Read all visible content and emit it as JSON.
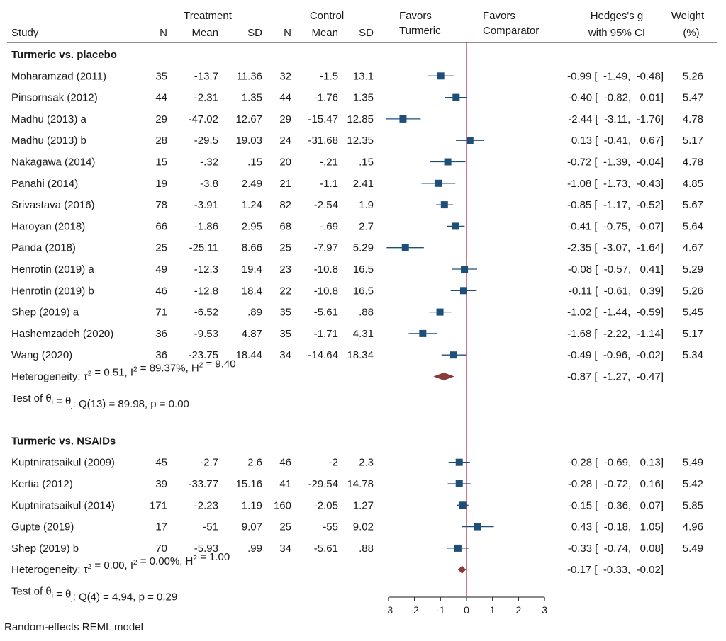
{
  "chart_data": {
    "type": "forest",
    "model_note": "Random-effects REML model",
    "headers": {
      "treatment_group": "Treatment",
      "control_group": "Control",
      "study": "Study",
      "n": "N",
      "mean": "Mean",
      "sd": "SD",
      "favors_left_1": "Favors",
      "favors_left_2": "Turmeric",
      "favors_right_1": "Favors",
      "favors_right_2": "Comparator",
      "effect_1": "Hedges's g",
      "effect_2": "with 95% CI",
      "weight_1": "Weight",
      "weight_2": "(%)"
    },
    "x_axis": {
      "range": [
        -3,
        3
      ],
      "ticks": [
        "-3",
        "-2",
        "-1",
        "0",
        "1",
        "2",
        "3"
      ],
      "null_line": 0,
      "null_line_color": "#c0506a"
    },
    "colors": {
      "marker": "#1f4e79",
      "ci": "#1f4e79",
      "diamond": "#8b3a3a"
    },
    "groups": [
      {
        "title": "Turmeric vs. placebo",
        "studies": [
          {
            "name": "Moharamzad (2011)",
            "tn": "35",
            "tmean": "-13.7",
            "tsd": "11.36",
            "cn": "32",
            "cmean": "-1.5",
            "csd": "13.1",
            "g": -0.99,
            "lo": -1.49,
            "hi": -0.48,
            "ci_text": "-0.99 [  -1.49,  -0.48]",
            "weight": "5.26"
          },
          {
            "name": "Pinsornsak (2012)",
            "tn": "44",
            "tmean": "-2.31",
            "tsd": "1.35",
            "cn": "44",
            "cmean": "-1.76",
            "csd": "1.35",
            "g": -0.4,
            "lo": -0.82,
            "hi": 0.01,
            "ci_text": "-0.40 [  -0.82,   0.01]",
            "weight": "5.47"
          },
          {
            "name": "Madhu (2013) a",
            "tn": "29",
            "tmean": "-47.02",
            "tsd": "12.67",
            "cn": "29",
            "cmean": "-15.47",
            "csd": "12.85",
            "g": -2.44,
            "lo": -3.11,
            "hi": -1.76,
            "ci_text": "-2.44 [  -3.11,  -1.76]",
            "weight": "4.78"
          },
          {
            "name": "Madhu (2013) b",
            "tn": "28",
            "tmean": "-29.5",
            "tsd": "19.03",
            "cn": "24",
            "cmean": "-31.68",
            "csd": "12.35",
            "g": 0.13,
            "lo": -0.41,
            "hi": 0.67,
            "ci_text": "0.13 [  -0.41,   0.67]",
            "weight": "5.17"
          },
          {
            "name": "Nakagawa (2014)",
            "tn": "15",
            "tmean": "-.32",
            "tsd": ".15",
            "cn": "20",
            "cmean": "-.21",
            "csd": ".15",
            "g": -0.72,
            "lo": -1.39,
            "hi": -0.04,
            "ci_text": "-0.72 [  -1.39,  -0.04]",
            "weight": "4.78"
          },
          {
            "name": "Panahi (2014)",
            "tn": "19",
            "tmean": "-3.8",
            "tsd": "2.49",
            "cn": "21",
            "cmean": "-1.1",
            "csd": "2.41",
            "g": -1.08,
            "lo": -1.73,
            "hi": -0.43,
            "ci_text": "-1.08 [  -1.73,  -0.43]",
            "weight": "4.85"
          },
          {
            "name": "Srivastava (2016)",
            "tn": "78",
            "tmean": "-3.91",
            "tsd": "1.24",
            "cn": "82",
            "cmean": "-2.54",
            "csd": "1.9",
            "g": -0.85,
            "lo": -1.17,
            "hi": -0.52,
            "ci_text": "-0.85 [  -1.17,  -0.52]",
            "weight": "5.67"
          },
          {
            "name": "Haroyan (2018)",
            "tn": "66",
            "tmean": "-1.86",
            "tsd": "2.95",
            "cn": "68",
            "cmean": "-.69",
            "csd": "2.7",
            "g": -0.41,
            "lo": -0.75,
            "hi": -0.07,
            "ci_text": "-0.41 [  -0.75,  -0.07]",
            "weight": "5.64"
          },
          {
            "name": "Panda (2018)",
            "tn": "25",
            "tmean": "-25.11",
            "tsd": "8.66",
            "cn": "25",
            "cmean": "-7.97",
            "csd": "5.29",
            "g": -2.35,
            "lo": -3.07,
            "hi": -1.64,
            "ci_text": "-2.35 [  -3.07,  -1.64]",
            "weight": "4.67"
          },
          {
            "name": "Henrotin (2019) a",
            "tn": "49",
            "tmean": "-12.3",
            "tsd": "19.4",
            "cn": "23",
            "cmean": "-10.8",
            "csd": "16.5",
            "g": -0.08,
            "lo": -0.57,
            "hi": 0.41,
            "ci_text": "-0.08 [  -0.57,   0.41]",
            "weight": "5.29"
          },
          {
            "name": "Henrotin (2019) b",
            "tn": "46",
            "tmean": "-12.8",
            "tsd": "18.4",
            "cn": "22",
            "cmean": "-10.8",
            "csd": "16.5",
            "g": -0.11,
            "lo": -0.61,
            "hi": 0.39,
            "ci_text": "-0.11 [  -0.61,   0.39]",
            "weight": "5.26"
          },
          {
            "name": "Shep (2019) a",
            "tn": "71",
            "tmean": "-6.52",
            "tsd": ".89",
            "cn": "35",
            "cmean": "-5.61",
            "csd": ".88",
            "g": -1.02,
            "lo": -1.44,
            "hi": -0.59,
            "ci_text": "-1.02 [  -1.44,  -0.59]",
            "weight": "5.45"
          },
          {
            "name": "Hashemzadeh (2020)",
            "tn": "36",
            "tmean": "-9.53",
            "tsd": "4.87",
            "cn": "35",
            "cmean": "-1.71",
            "csd": "4.31",
            "g": -1.68,
            "lo": -2.22,
            "hi": -1.14,
            "ci_text": "-1.68 [  -2.22,  -1.14]",
            "weight": "5.17"
          },
          {
            "name": "Wang (2020)",
            "tn": "36",
            "tmean": "-23.75",
            "tsd": "18.44",
            "cn": "34",
            "cmean": "-14.64",
            "csd": "18.34",
            "g": -0.49,
            "lo": -0.96,
            "hi": -0.02,
            "ci_text": "-0.49 [  -0.96,  -0.02]",
            "weight": "5.34"
          }
        ],
        "pooled": {
          "label_parts": [
            {
              "t": "Heterogeneity: "
            },
            {
              "t": "τ"
            },
            {
              "t": "2",
              "sup": true
            },
            {
              "t": " = 0.51, I"
            },
            {
              "t": "2",
              "sup": true
            },
            {
              "t": " = 89.37%, H"
            },
            {
              "t": "2",
              "sup": true
            },
            {
              "t": " = 9.40"
            }
          ],
          "g": -0.87,
          "lo": -1.27,
          "hi": -0.47,
          "ci_text": "-0.87 [  -1.27,  -0.47]"
        },
        "test_parts": [
          {
            "t": "Test of θ"
          },
          {
            "t": "i",
            "sub": true
          },
          {
            "t": " = θ"
          },
          {
            "t": "j",
            "sub": true
          },
          {
            "t": ": Q(13) = 89.98, p = 0.00"
          }
        ]
      },
      {
        "title": "Turmeric vs. NSAIDs",
        "studies": [
          {
            "name": "Kuptniratsaikul (2009)",
            "tn": "45",
            "tmean": "-2.7",
            "tsd": "2.6",
            "cn": "46",
            "cmean": "-2",
            "csd": "2.3",
            "g": -0.28,
            "lo": -0.69,
            "hi": 0.13,
            "ci_text": "-0.28 [  -0.69,   0.13]",
            "weight": "5.49"
          },
          {
            "name": "Kertia (2012)",
            "tn": "39",
            "tmean": "-33.77",
            "tsd": "15.16",
            "cn": "41",
            "cmean": "-29.54",
            "csd": "14.78",
            "g": -0.28,
            "lo": -0.72,
            "hi": 0.16,
            "ci_text": "-0.28 [  -0.72,   0.16]",
            "weight": "5.42"
          },
          {
            "name": "Kuptniratsaikul (2014)",
            "tn": "171",
            "tmean": "-2.23",
            "tsd": "1.19",
            "cn": "160",
            "cmean": "-2.05",
            "csd": "1.27",
            "g": -0.15,
            "lo": -0.36,
            "hi": 0.07,
            "ci_text": "-0.15 [  -0.36,   0.07]",
            "weight": "5.85"
          },
          {
            "name": "Gupte (2019)",
            "tn": "17",
            "tmean": "-51",
            "tsd": "9.07",
            "cn": "25",
            "cmean": "-55",
            "csd": "9.02",
            "g": 0.43,
            "lo": -0.18,
            "hi": 1.05,
            "ci_text": "0.43 [  -0.18,   1.05]",
            "weight": "4.96"
          },
          {
            "name": "Shep (2019) b",
            "tn": "70",
            "tmean": "-5.93",
            "tsd": ".99",
            "cn": "34",
            "cmean": "-5.61",
            "csd": ".88",
            "g": -0.33,
            "lo": -0.74,
            "hi": 0.08,
            "ci_text": "-0.33 [  -0.74,   0.08]",
            "weight": "5.49"
          }
        ],
        "pooled": {
          "label_parts": [
            {
              "t": "Heterogeneity: "
            },
            {
              "t": "τ"
            },
            {
              "t": "2",
              "sup": true
            },
            {
              "t": " = 0.00, I"
            },
            {
              "t": "2",
              "sup": true
            },
            {
              "t": " = 0.00%, H"
            },
            {
              "t": "2",
              "sup": true
            },
            {
              "t": " = 1.00"
            }
          ],
          "g": -0.17,
          "lo": -0.33,
          "hi": -0.02,
          "ci_text": "-0.17 [  -0.33,  -0.02]"
        },
        "test_parts": [
          {
            "t": "Test of θ"
          },
          {
            "t": "i",
            "sub": true
          },
          {
            "t": " = θ"
          },
          {
            "t": "j",
            "sub": true
          },
          {
            "t": ": Q(4) = 4.94, p = 0.29"
          }
        ]
      }
    ]
  }
}
